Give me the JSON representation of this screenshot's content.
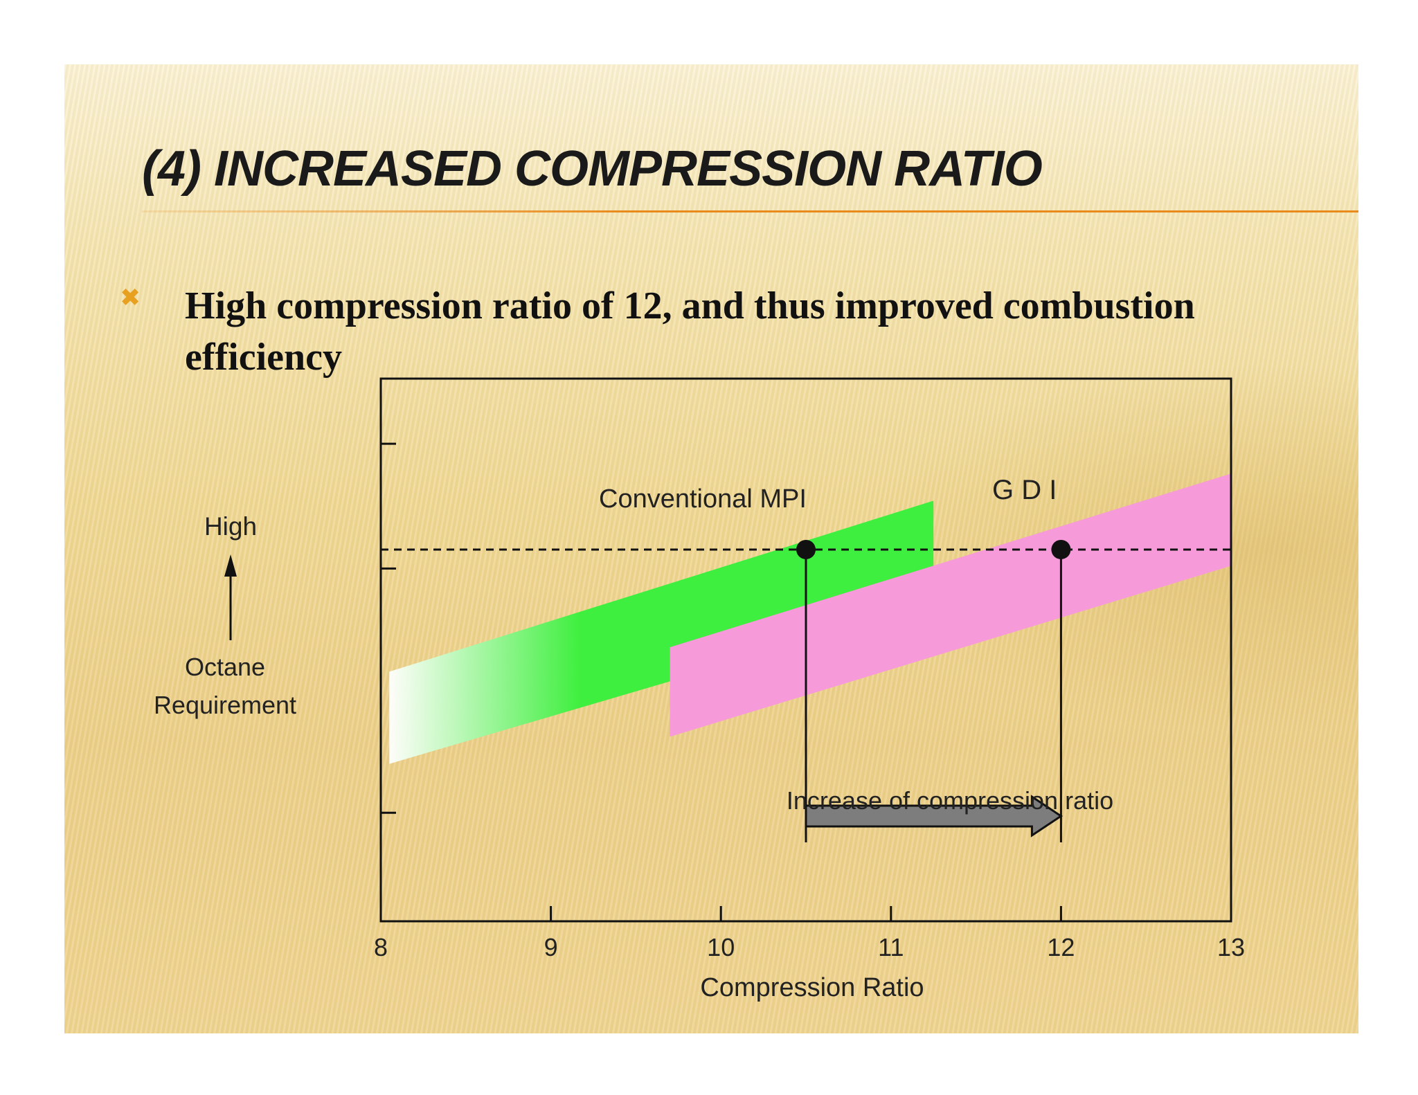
{
  "slide": {
    "title": "(4) INCREASED COMPRESSION RATIO",
    "bullet_icon": "x-mark-icon",
    "bullet_text": "High compression ratio of 12, and thus improved combustion efficiency",
    "accent_color": "#e88a1c"
  },
  "chart_data": {
    "type": "area",
    "xlabel": "Compression Ratio",
    "xticks": [
      "8",
      "9",
      "10",
      "11",
      "12",
      "13"
    ],
    "xlim": [
      8,
      13
    ],
    "ylabel_lines": [
      "Octane",
      "Requirement"
    ],
    "ylabel_top": "High",
    "ylim": [
      0,
      10
    ],
    "bands": [
      {
        "name": "Conventional MPI",
        "x": [
          8.05,
          11.25
        ],
        "lower": [
          2.9,
          5.85
        ],
        "upper": [
          4.6,
          7.75
        ],
        "color": "#3fef3f"
      },
      {
        "name": "G D I",
        "x": [
          9.7,
          13.0
        ],
        "lower": [
          3.4,
          6.55
        ],
        "upper": [
          5.05,
          8.25
        ],
        "color": "#f79ad9"
      }
    ],
    "reference_level": 6.85,
    "markers": [
      {
        "x": 10.5,
        "y": 6.85
      },
      {
        "x": 12.0,
        "y": 6.85
      }
    ],
    "arrow": {
      "from": 10.5,
      "to": 12.0,
      "label": "Increase of compression ratio"
    },
    "grid": false
  }
}
